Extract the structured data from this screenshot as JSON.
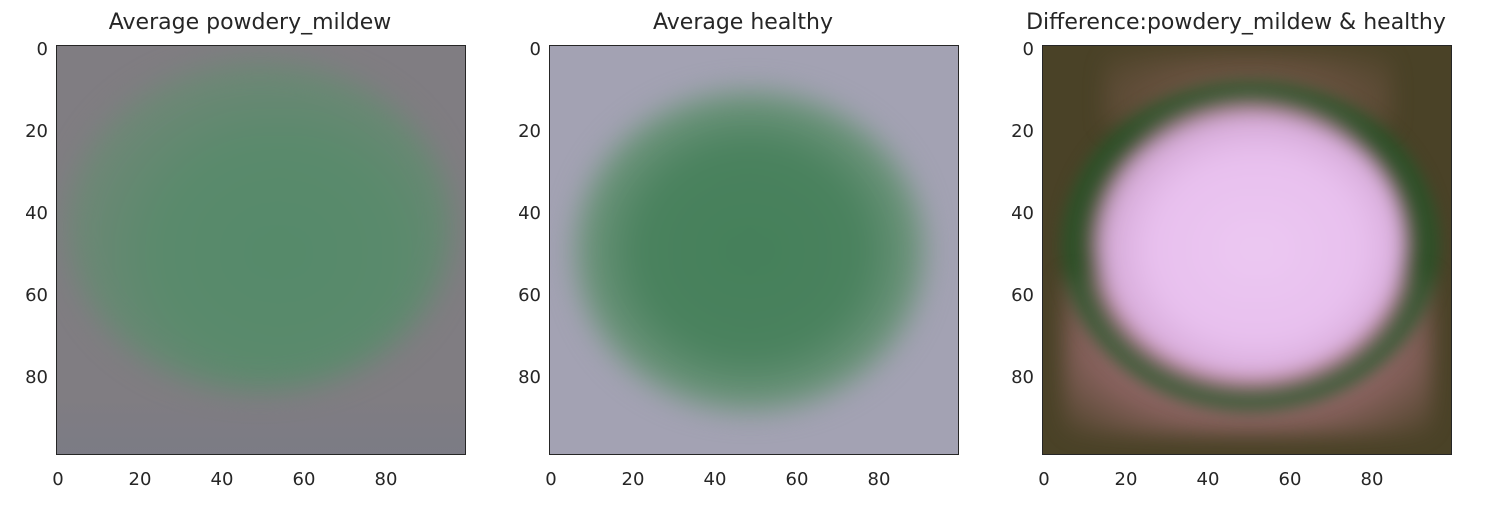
{
  "chart_data": [
    {
      "type": "image",
      "title": "Average powdery_mildew",
      "xlim": [
        0,
        99
      ],
      "ylim": [
        99,
        0
      ],
      "xticks": [
        "0",
        "20",
        "40",
        "60",
        "80"
      ],
      "yticks": [
        "0",
        "20",
        "40",
        "60",
        "80"
      ],
      "colors": {
        "background": "#807d82",
        "center": "#548a68",
        "edge": "#6f8876"
      }
    },
    {
      "type": "image",
      "title": "Average healthy",
      "xlim": [
        0,
        99
      ],
      "ylim": [
        99,
        0
      ],
      "xticks": [
        "0",
        "20",
        "40",
        "60",
        "80"
      ],
      "yticks": [
        "0",
        "20",
        "40",
        "60",
        "80"
      ],
      "colors": {
        "background": "#a3a2b3",
        "center": "#45805a",
        "edge": "#7f9a8c"
      }
    },
    {
      "type": "image",
      "title": "Difference:powdery_mildew & healthy",
      "xlim": [
        0,
        99
      ],
      "ylim": [
        99,
        0
      ],
      "xticks": [
        "0",
        "20",
        "40",
        "60",
        "80"
      ],
      "yticks": [
        "0",
        "20",
        "40",
        "60",
        "80"
      ],
      "colors": {
        "background": "#4a4227",
        "center": "#ecc8f2",
        "ring": "#1e5a2a",
        "lower": "#b07a86"
      }
    }
  ]
}
